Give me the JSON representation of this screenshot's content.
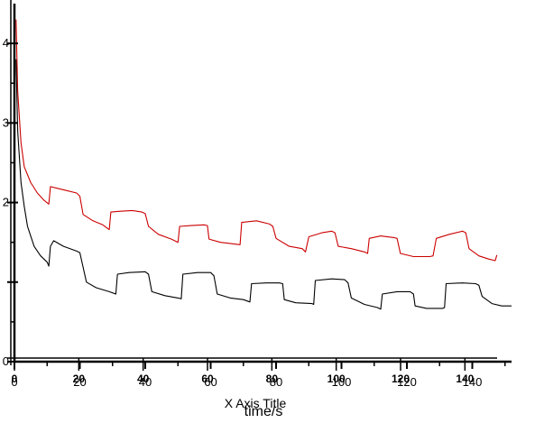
{
  "chart_data": {
    "type": "line",
    "title": "",
    "xlabel": "time/s",
    "xlabel_overlay": "X Axis Title",
    "ylabel": "",
    "xlim": [
      0,
      152
    ],
    "xlim_secondary": [
      0,
      150
    ],
    "ylim": [
      0,
      4.5
    ],
    "x_ticks_primary": [
      0,
      20,
      40,
      60,
      80,
      100,
      120,
      140
    ],
    "x_ticks_secondary": [
      0,
      20,
      40,
      60,
      80,
      100,
      120,
      140
    ],
    "y_ticks": [
      0,
      1,
      2,
      3,
      4
    ],
    "y_tick_labels": [
      "0",
      "",
      "2",
      "3",
      "4"
    ],
    "grid": false,
    "series": [
      {
        "color": "#cc0000",
        "points": [
          [
            0.5,
            4.3
          ],
          [
            1,
            3.4
          ],
          [
            2,
            2.75
          ],
          [
            3,
            2.45
          ],
          [
            5,
            2.25
          ],
          [
            7,
            2.12
          ],
          [
            9,
            2.03
          ],
          [
            10.5,
            1.98
          ],
          [
            11,
            2.2
          ],
          [
            13,
            2.18
          ],
          [
            16,
            2.15
          ],
          [
            19,
            2.12
          ],
          [
            20,
            2.08
          ],
          [
            21,
            1.85
          ],
          [
            24,
            1.77
          ],
          [
            27,
            1.72
          ],
          [
            29,
            1.66
          ],
          [
            29.5,
            1.88
          ],
          [
            32,
            1.89
          ],
          [
            36,
            1.9
          ],
          [
            39,
            1.88
          ],
          [
            40,
            1.86
          ],
          [
            41,
            1.7
          ],
          [
            44,
            1.6
          ],
          [
            48,
            1.54
          ],
          [
            50,
            1.5
          ],
          [
            50.5,
            1.7
          ],
          [
            54,
            1.71
          ],
          [
            58,
            1.72
          ],
          [
            59,
            1.71
          ],
          [
            59.5,
            1.54
          ],
          [
            63,
            1.5
          ],
          [
            67,
            1.48
          ],
          [
            69,
            1.47
          ],
          [
            69.5,
            1.75
          ],
          [
            74,
            1.77
          ],
          [
            78,
            1.73
          ],
          [
            79,
            1.7
          ],
          [
            80,
            1.55
          ],
          [
            84,
            1.45
          ],
          [
            88,
            1.42
          ],
          [
            89,
            1.38
          ],
          [
            90,
            1.57
          ],
          [
            94,
            1.62
          ],
          [
            97,
            1.64
          ],
          [
            98,
            1.62
          ],
          [
            99,
            1.45
          ],
          [
            103,
            1.42
          ],
          [
            107,
            1.38
          ],
          [
            108,
            1.36
          ],
          [
            108.5,
            1.55
          ],
          [
            112,
            1.58
          ],
          [
            116,
            1.56
          ],
          [
            117,
            1.55
          ],
          [
            118,
            1.36
          ],
          [
            122,
            1.32
          ],
          [
            127,
            1.32
          ],
          [
            128,
            1.33
          ],
          [
            129,
            1.55
          ],
          [
            133,
            1.6
          ],
          [
            137,
            1.64
          ],
          [
            138,
            1.62
          ],
          [
            139,
            1.42
          ],
          [
            142,
            1.33
          ],
          [
            145,
            1.29
          ],
          [
            147,
            1.27
          ],
          [
            147.5,
            1.34
          ]
        ]
      },
      {
        "color": "#000000",
        "points": [
          [
            0.5,
            3.8
          ],
          [
            1,
            2.9
          ],
          [
            2,
            2.25
          ],
          [
            3,
            1.95
          ],
          [
            4,
            1.7
          ],
          [
            6,
            1.45
          ],
          [
            8,
            1.33
          ],
          [
            10,
            1.25
          ],
          [
            10.5,
            1.2
          ],
          [
            11,
            1.45
          ],
          [
            12,
            1.52
          ],
          [
            15,
            1.45
          ],
          [
            19,
            1.39
          ],
          [
            20,
            1.37
          ],
          [
            22,
            1.0
          ],
          [
            25,
            0.93
          ],
          [
            29,
            0.88
          ],
          [
            31,
            0.85
          ],
          [
            31.5,
            1.1
          ],
          [
            35,
            1.12
          ],
          [
            40,
            1.13
          ],
          [
            41,
            1.1
          ],
          [
            42,
            0.88
          ],
          [
            46,
            0.83
          ],
          [
            50,
            0.8
          ],
          [
            51,
            0.79
          ],
          [
            51.5,
            1.1
          ],
          [
            56,
            1.12
          ],
          [
            60,
            1.12
          ],
          [
            61,
            1.08
          ],
          [
            62,
            0.85
          ],
          [
            66,
            0.8
          ],
          [
            70,
            0.78
          ],
          [
            72,
            0.75
          ],
          [
            72.5,
            0.98
          ],
          [
            77,
            0.99
          ],
          [
            81,
            0.99
          ],
          [
            82,
            0.98
          ],
          [
            82.5,
            0.78
          ],
          [
            86,
            0.74
          ],
          [
            91,
            0.73
          ],
          [
            91.5,
            0.72
          ],
          [
            92,
            1.02
          ],
          [
            97,
            1.04
          ],
          [
            101,
            1.03
          ],
          [
            102,
            0.99
          ],
          [
            103,
            0.8
          ],
          [
            107,
            0.72
          ],
          [
            111,
            0.68
          ],
          [
            112,
            0.66
          ],
          [
            112.5,
            0.85
          ],
          [
            117,
            0.88
          ],
          [
            121,
            0.88
          ],
          [
            122,
            0.85
          ],
          [
            122.5,
            0.7
          ],
          [
            126,
            0.67
          ],
          [
            131,
            0.67
          ],
          [
            131.5,
            0.68
          ],
          [
            132,
            0.98
          ],
          [
            137,
            0.99
          ],
          [
            141,
            0.98
          ],
          [
            142,
            0.96
          ],
          [
            143,
            0.82
          ],
          [
            146,
            0.73
          ],
          [
            149,
            0.7
          ],
          [
            152,
            0.7
          ]
        ]
      }
    ]
  }
}
